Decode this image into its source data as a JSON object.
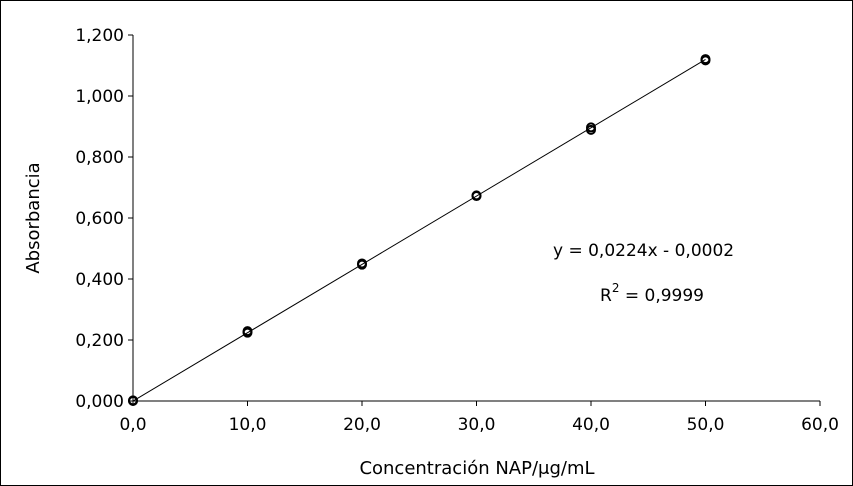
{
  "chart_data": {
    "type": "scatter",
    "xlabel": "Concentración NAP/μg/mL",
    "ylabel": "Absorbancia",
    "xlim": [
      0,
      60
    ],
    "ylim": [
      0,
      1.2
    ],
    "x_ticks": [
      "0,0",
      "10,0",
      "20,0",
      "30,0",
      "40,0",
      "50,0",
      "60,0"
    ],
    "y_ticks": [
      "0,000",
      "0,200",
      "0,400",
      "0,600",
      "0,800",
      "1,000",
      "1,200"
    ],
    "grid": false,
    "series": [
      {
        "points": [
          {
            "x": 0,
            "y": 0.0
          },
          {
            "x": 0,
            "y": 0.002
          },
          {
            "x": 10,
            "y": 0.224
          },
          {
            "x": 10,
            "y": 0.229
          },
          {
            "x": 20,
            "y": 0.447
          },
          {
            "x": 20,
            "y": 0.451
          },
          {
            "x": 30,
            "y": 0.672
          },
          {
            "x": 30,
            "y": 0.674
          },
          {
            "x": 40,
            "y": 0.889
          },
          {
            "x": 40,
            "y": 0.897
          },
          {
            "x": 50,
            "y": 1.117
          },
          {
            "x": 50,
            "y": 1.121
          }
        ]
      }
    ],
    "trendline": {
      "slope": 0.0224,
      "intercept": -0.0002,
      "x_range": [
        0,
        50
      ]
    },
    "annotations": {
      "equation": "y = 0,0224x - 0,0002",
      "r2_base": "R",
      "r2_sup": "2",
      "r2_value": " = 0,9999"
    }
  }
}
